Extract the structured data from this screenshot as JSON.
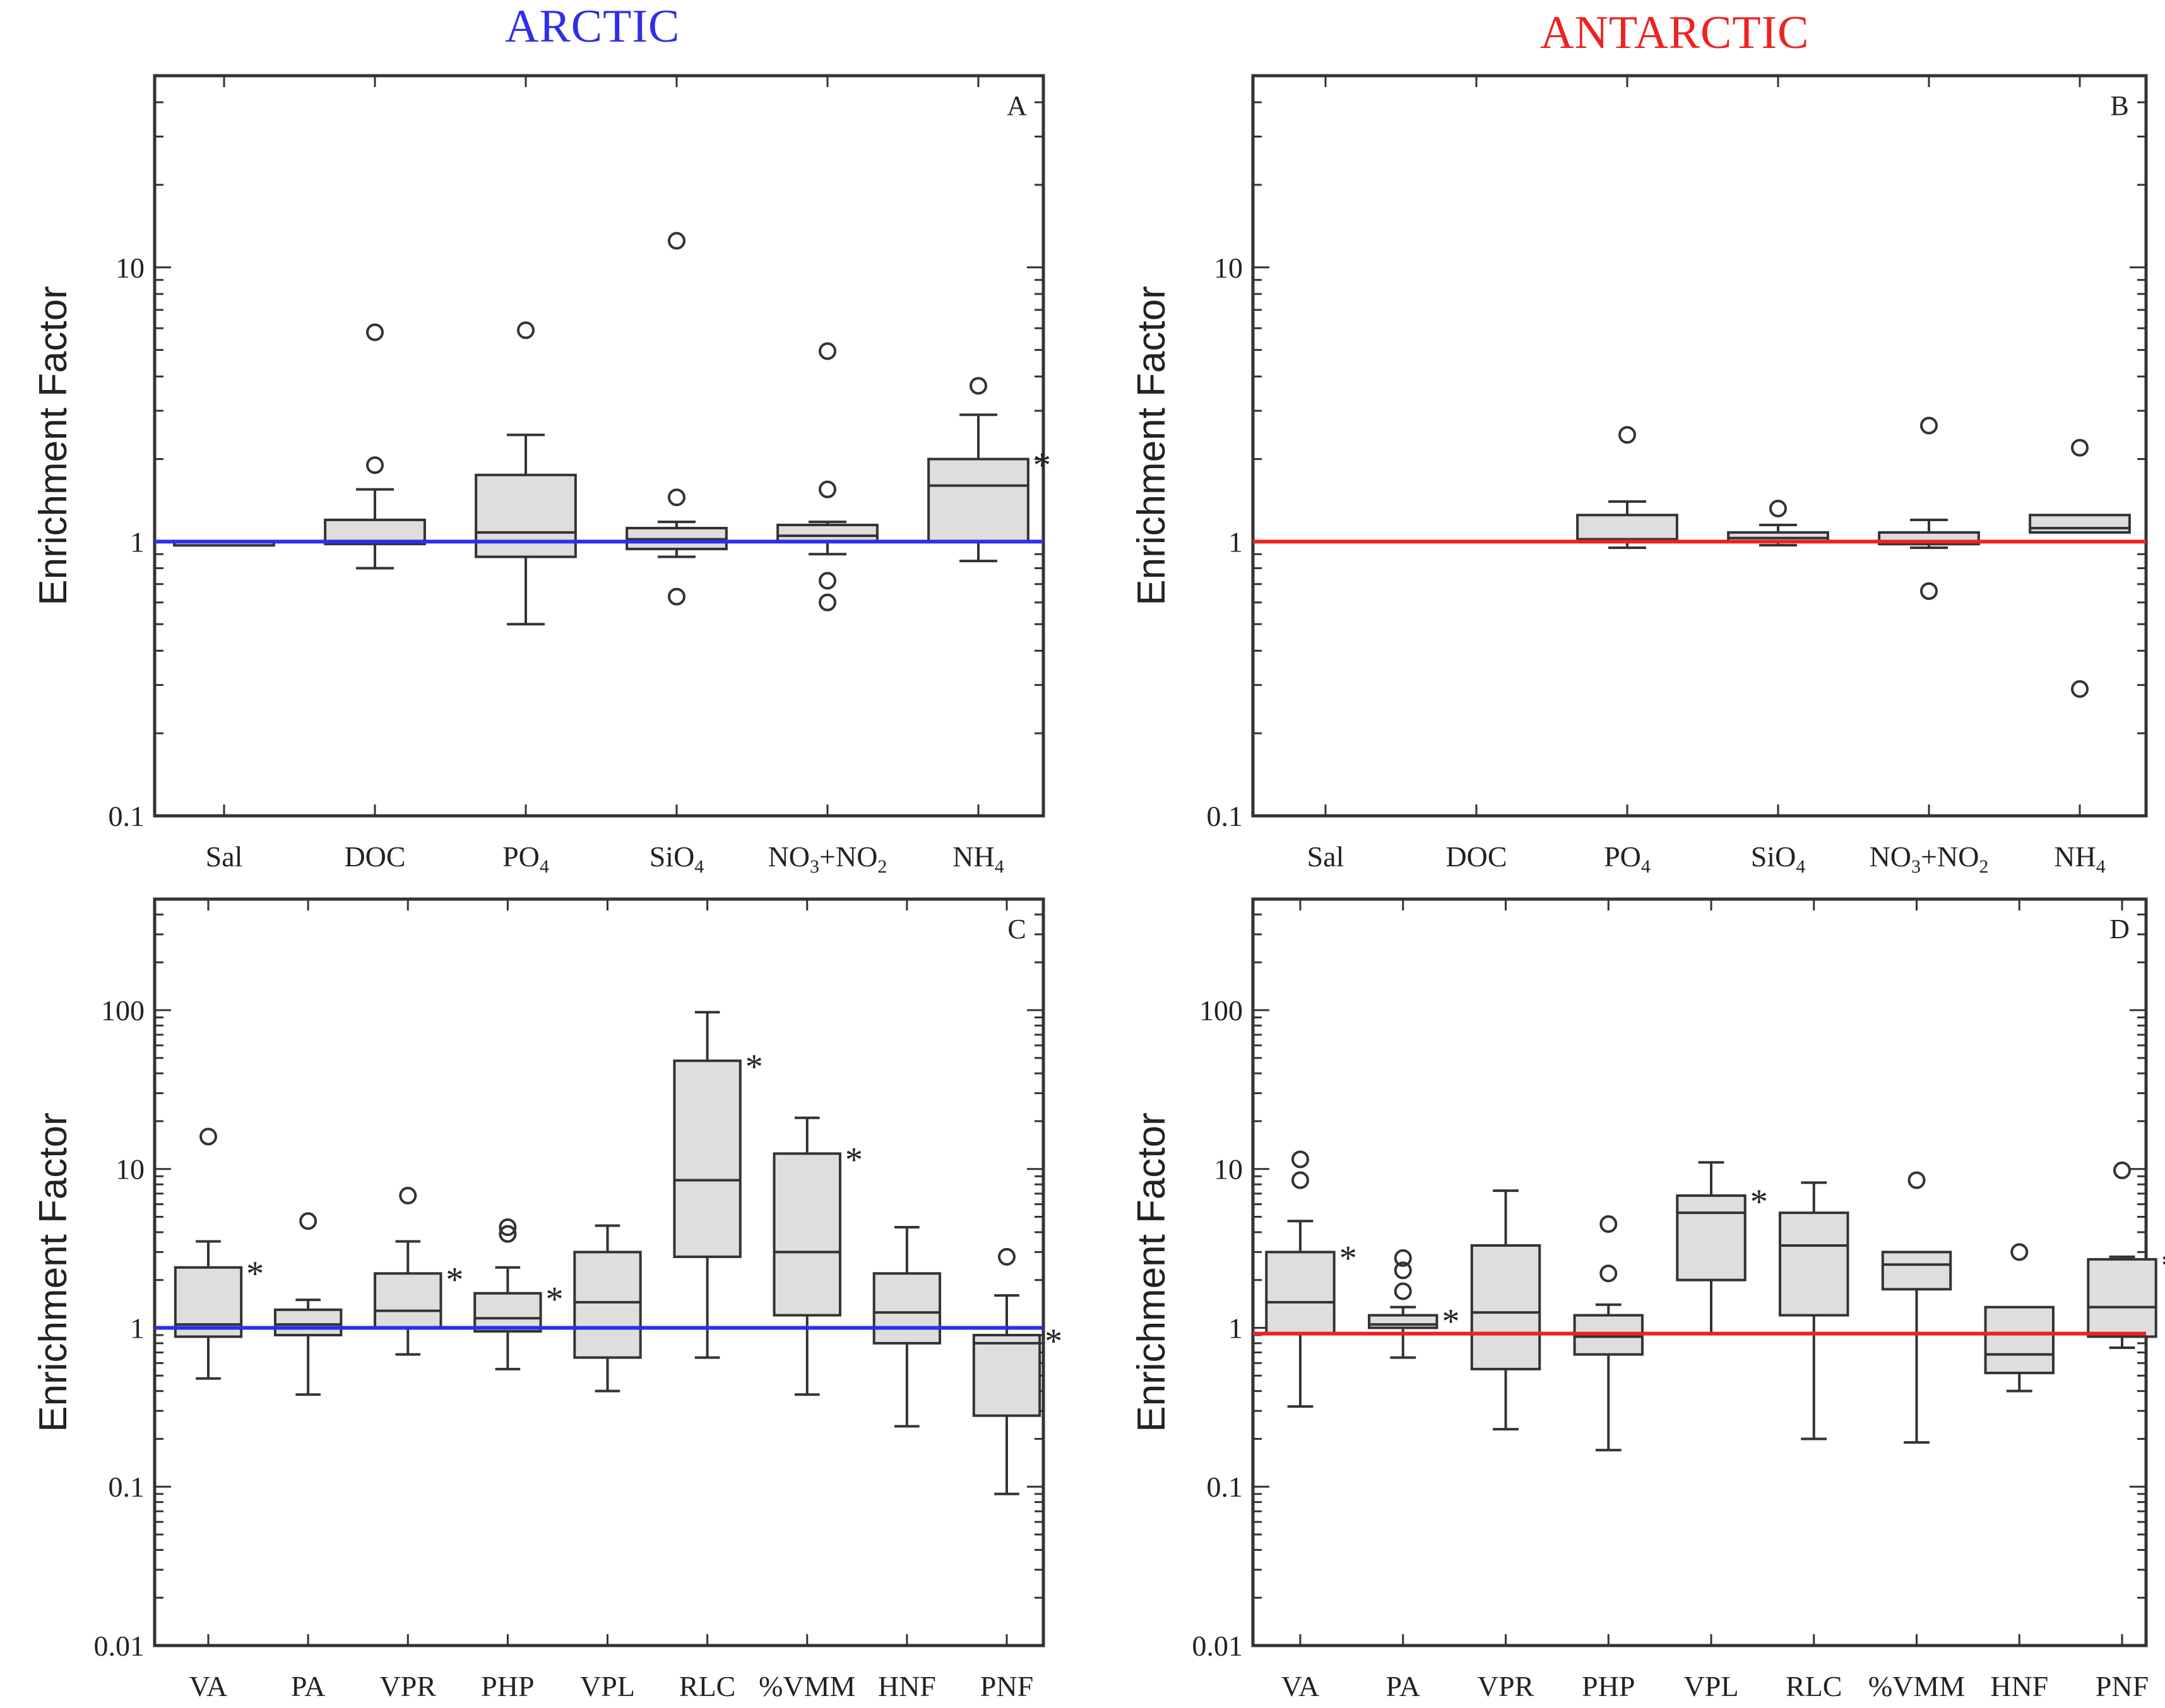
{
  "titles": {
    "arctic": "ARCTIC",
    "antarctic": "ANTARCTIC"
  },
  "colors": {
    "arctic_line": "#2f2fe6",
    "antarctic_line": "#ee2222",
    "arctic_title": "#2f2fe6",
    "antarctic_title": "#ee2222",
    "box_fill": "#dedede",
    "axis": "#333333"
  },
  "chart_data": [
    {
      "panel": "A",
      "region": "ARCTIC",
      "type": "box",
      "scale": "log",
      "ylabel": "Enrichment Factor",
      "ylim": [
        0.1,
        50
      ],
      "yticks": [
        {
          "v": 0.1,
          "label": "0.1"
        },
        {
          "v": 1,
          "label": "1"
        },
        {
          "v": 10,
          "label": "10"
        }
      ],
      "reference_line": 1,
      "categories": [
        "Sal",
        "DOC",
        "PO4",
        "SiO4",
        "NO3+NO2",
        "NH4"
      ],
      "category_labels": [
        {
          "base": "Sal"
        },
        {
          "base": "DOC"
        },
        {
          "base": "PO",
          "sub": "4"
        },
        {
          "base": "SiO",
          "sub": "4"
        },
        {
          "base": "NO",
          "sub": "3",
          "mid": "+NO",
          "sub2": "2"
        },
        {
          "base": "NH",
          "sub": "4"
        }
      ],
      "boxes": [
        {
          "cat": "Sal",
          "median": 1.0,
          "q1": 1.0,
          "q3": 1.0,
          "wlo": 1.0,
          "whi": 1.0,
          "outliers": [],
          "star": false
        },
        {
          "cat": "DOC",
          "median": 1.0,
          "q1": 0.98,
          "q3": 1.2,
          "wlo": 0.8,
          "whi": 1.55,
          "outliers": [
            1.9,
            5.8
          ],
          "star": false
        },
        {
          "cat": "PO4",
          "median": 1.08,
          "q1": 0.88,
          "q3": 1.75,
          "wlo": 0.5,
          "whi": 2.45,
          "outliers": [
            5.9
          ],
          "star": false
        },
        {
          "cat": "SiO4",
          "median": 1.02,
          "q1": 0.94,
          "q3": 1.12,
          "wlo": 0.88,
          "whi": 1.18,
          "outliers": [
            0.63,
            1.45,
            12.5
          ],
          "star": false
        },
        {
          "cat": "NO3+NO2",
          "median": 1.05,
          "q1": 1.0,
          "q3": 1.15,
          "wlo": 0.9,
          "whi": 1.18,
          "outliers": [
            0.6,
            0.72,
            1.55,
            4.95
          ],
          "star": false
        },
        {
          "cat": "NH4",
          "median": 1.6,
          "q1": 1.0,
          "q3": 2.0,
          "wlo": 0.85,
          "whi": 2.9,
          "outliers": [
            3.7
          ],
          "star": true
        }
      ]
    },
    {
      "panel": "B",
      "region": "ANTARCTIC",
      "type": "box",
      "scale": "log",
      "ylabel": "Enrichment Factor",
      "ylim": [
        0.1,
        50
      ],
      "yticks": [
        {
          "v": 0.1,
          "label": "0.1"
        },
        {
          "v": 1,
          "label": "1"
        },
        {
          "v": 10,
          "label": "10"
        }
      ],
      "reference_line": 1,
      "categories": [
        "Sal",
        "DOC",
        "PO4",
        "SiO4",
        "NO3+NO2",
        "NH4"
      ],
      "category_labels": [
        {
          "base": "Sal"
        },
        {
          "base": "DOC"
        },
        {
          "base": "PO",
          "sub": "4"
        },
        {
          "base": "SiO",
          "sub": "4"
        },
        {
          "base": "NO",
          "sub": "3",
          "mid": "+NO",
          "sub2": "2"
        },
        {
          "base": "NH",
          "sub": "4"
        }
      ],
      "boxes": [
        {
          "cat": "PO4",
          "median": 1.02,
          "q1": 1.0,
          "q3": 1.25,
          "wlo": 0.95,
          "whi": 1.4,
          "outliers": [
            2.45
          ],
          "star": false
        },
        {
          "cat": "SiO4",
          "median": 1.03,
          "q1": 1.0,
          "q3": 1.08,
          "wlo": 0.97,
          "whi": 1.15,
          "outliers": [
            1.32
          ],
          "star": false
        },
        {
          "cat": "NO3+NO2",
          "median": 0.98,
          "q1": 0.98,
          "q3": 1.08,
          "wlo": 0.95,
          "whi": 1.2,
          "outliers": [
            0.66,
            2.65
          ],
          "star": false
        },
        {
          "cat": "NH4",
          "median": 1.12,
          "q1": 1.08,
          "q3": 1.25,
          "wlo": 1.08,
          "whi": 1.25,
          "outliers": [
            0.29,
            2.2
          ],
          "star": false
        }
      ]
    },
    {
      "panel": "C",
      "region": "ARCTIC",
      "type": "box",
      "scale": "log",
      "ylabel": "Enrichment Factor",
      "ylim": [
        0.01,
        500
      ],
      "yticks": [
        {
          "v": 0.01,
          "label": "0.01"
        },
        {
          "v": 0.1,
          "label": "0.1"
        },
        {
          "v": 1,
          "label": "1"
        },
        {
          "v": 10,
          "label": "10"
        },
        {
          "v": 100,
          "label": "100"
        }
      ],
      "reference_line": 1,
      "categories": [
        "VA",
        "PA",
        "VPR",
        "PHP",
        "VPL",
        "RLC",
        "%VMM",
        "HNF",
        "PNF"
      ],
      "category_labels": [
        {
          "base": "VA"
        },
        {
          "base": "PA"
        },
        {
          "base": "VPR"
        },
        {
          "base": "PHP"
        },
        {
          "base": "VPL"
        },
        {
          "base": "RLC"
        },
        {
          "base": "%VMM"
        },
        {
          "base": "HNF"
        },
        {
          "base": "PNF"
        }
      ],
      "boxes": [
        {
          "cat": "VA",
          "median": 1.05,
          "q1": 0.88,
          "q3": 2.4,
          "wlo": 0.48,
          "whi": 3.5,
          "outliers": [
            16
          ],
          "star": true
        },
        {
          "cat": "PA",
          "median": 1.05,
          "q1": 0.9,
          "q3": 1.3,
          "wlo": 0.38,
          "whi": 1.5,
          "outliers": [
            4.7
          ],
          "star": false
        },
        {
          "cat": "VPR",
          "median": 1.28,
          "q1": 1.0,
          "q3": 2.2,
          "wlo": 0.68,
          "whi": 3.5,
          "outliers": [
            6.8
          ],
          "star": true
        },
        {
          "cat": "PHP",
          "median": 1.15,
          "q1": 0.95,
          "q3": 1.65,
          "wlo": 0.55,
          "whi": 2.4,
          "outliers": [
            3.9,
            4.3
          ],
          "star": true
        },
        {
          "cat": "VPL",
          "median": 1.45,
          "q1": 0.65,
          "q3": 3.0,
          "wlo": 0.4,
          "whi": 4.4,
          "outliers": [],
          "star": false
        },
        {
          "cat": "RLC",
          "median": 8.5,
          "q1": 2.8,
          "q3": 48,
          "wlo": 0.65,
          "whi": 97,
          "outliers": [],
          "star": true
        },
        {
          "cat": "%VMM",
          "median": 3.0,
          "q1": 1.2,
          "q3": 12.5,
          "wlo": 0.38,
          "whi": 21,
          "outliers": [],
          "star": true
        },
        {
          "cat": "HNF",
          "median": 1.25,
          "q1": 0.8,
          "q3": 2.2,
          "wlo": 0.24,
          "whi": 4.3,
          "outliers": [],
          "star": false
        },
        {
          "cat": "PNF",
          "median": 0.8,
          "q1": 0.28,
          "q3": 0.9,
          "wlo": 0.09,
          "whi": 1.6,
          "outliers": [
            2.8
          ],
          "star": true
        }
      ]
    },
    {
      "panel": "D",
      "region": "ANTARCTIC",
      "type": "box",
      "scale": "log",
      "ylabel": "Enrichment Factor",
      "ylim": [
        0.01,
        500
      ],
      "yticks": [
        {
          "v": 0.01,
          "label": "0.01"
        },
        {
          "v": 0.1,
          "label": "0.1"
        },
        {
          "v": 1,
          "label": "1"
        },
        {
          "v": 10,
          "label": "10"
        },
        {
          "v": 100,
          "label": "100"
        }
      ],
      "reference_line": 0.92,
      "categories": [
        "VA",
        "PA",
        "VPR",
        "PHP",
        "VPL",
        "RLC",
        "%VMM",
        "HNF",
        "PNF"
      ],
      "category_labels": [
        {
          "base": "VA"
        },
        {
          "base": "PA"
        },
        {
          "base": "VPR"
        },
        {
          "base": "PHP"
        },
        {
          "base": "VPL"
        },
        {
          "base": "RLC"
        },
        {
          "base": "%VMM"
        },
        {
          "base": "HNF"
        },
        {
          "base": "PNF"
        }
      ],
      "boxes": [
        {
          "cat": "VA",
          "median": 1.45,
          "q1": 0.92,
          "q3": 3.0,
          "wlo": 0.32,
          "whi": 4.7,
          "outliers": [
            8.5,
            11.5
          ],
          "star": true
        },
        {
          "cat": "PA",
          "median": 1.05,
          "q1": 1.0,
          "q3": 1.2,
          "wlo": 0.65,
          "whi": 1.35,
          "outliers": [
            1.7,
            2.3,
            2.75
          ],
          "star": true
        },
        {
          "cat": "VPR",
          "median": 1.25,
          "q1": 0.55,
          "q3": 3.3,
          "wlo": 0.23,
          "whi": 7.3,
          "outliers": [],
          "star": false
        },
        {
          "cat": "PHP",
          "median": 0.88,
          "q1": 0.68,
          "q3": 1.2,
          "wlo": 0.17,
          "whi": 1.4,
          "outliers": [
            2.2,
            4.5
          ],
          "star": false
        },
        {
          "cat": "VPL",
          "median": 5.3,
          "q1": 2.0,
          "q3": 6.8,
          "wlo": 0.92,
          "whi": 11,
          "outliers": [],
          "star": true
        },
        {
          "cat": "RLC",
          "median": 3.3,
          "q1": 1.2,
          "q3": 5.3,
          "wlo": 0.2,
          "whi": 8.2,
          "outliers": [],
          "star": false
        },
        {
          "cat": "%VMM",
          "median": 2.5,
          "q1": 1.75,
          "q3": 3.0,
          "wlo": 0.19,
          "whi": 3.0,
          "outliers": [
            8.5
          ],
          "star": false
        },
        {
          "cat": "HNF",
          "median": 0.68,
          "q1": 0.52,
          "q3": 1.35,
          "wlo": 0.4,
          "whi": 1.35,
          "outliers": [
            3.0
          ],
          "star": false
        },
        {
          "cat": "PNF",
          "median": 1.35,
          "q1": 0.88,
          "q3": 2.7,
          "wlo": 0.75,
          "whi": 2.8,
          "outliers": [
            9.8
          ],
          "star": true
        }
      ]
    }
  ]
}
